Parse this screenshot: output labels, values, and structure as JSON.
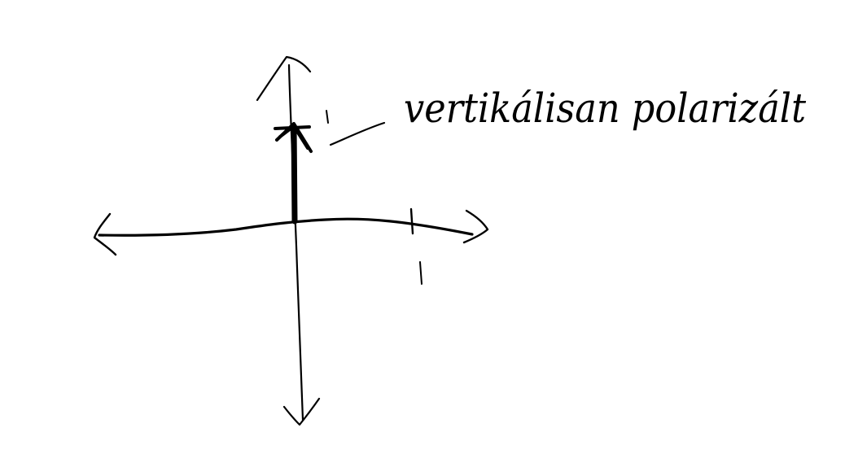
{
  "diagram": {
    "ink_color": "#000000",
    "background_color": "#ffffff",
    "vector_label": "vertikálisan polarizált",
    "y_tick_label": "1",
    "x_tick_label": "1"
  }
}
